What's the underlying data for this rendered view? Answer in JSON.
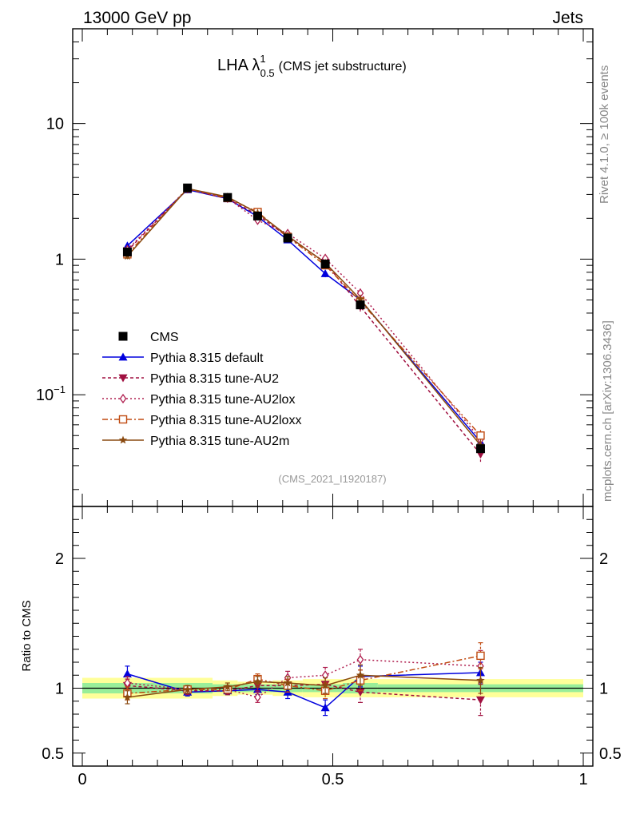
{
  "header": {
    "left": "13000 GeV pp",
    "right": "Jets"
  },
  "side": {
    "rivet": "Rivet 4.1.0, ≥ 100k events",
    "mcplots": "mcplots.cern.ch [arXiv:1306.3436]"
  },
  "chart_data": {
    "type": "line",
    "title": {
      "main": "LHA λ",
      "sup": "1",
      "sub": "0.5",
      "suffix": "(CMS jet substructure)"
    },
    "analysis_id": "(CMS_2021_I1920187)",
    "ratio_ylabel": "Ratio to CMS",
    "yscale": "log",
    "xlim": [
      0,
      1
    ],
    "ylim_main": [
      0.015,
      50
    ],
    "ylim_ratio": [
      0.4,
      2.4
    ],
    "main_ticks": [
      {
        "value": 10,
        "label": "10"
      },
      {
        "value": 1,
        "label": "1"
      },
      {
        "value": 0.1,
        "label": "10",
        "sup": "−1"
      }
    ],
    "ratio_ticks": [
      {
        "value": 2,
        "label": "2"
      },
      {
        "value": 1,
        "label": "1"
      },
      {
        "value": 0.5,
        "label": "0.5"
      }
    ],
    "x_ticks": [
      {
        "value": 0,
        "label": "0"
      },
      {
        "value": 0.5,
        "label": "0.5"
      },
      {
        "value": 1,
        "label": "1"
      }
    ],
    "x": [
      0.09,
      0.21,
      0.29,
      0.35,
      0.41,
      0.485,
      0.555,
      0.795
    ],
    "data": {
      "name": "CMS",
      "values": [
        1.13,
        3.35,
        2.85,
        2.08,
        1.43,
        0.92,
        0.46,
        0.04
      ],
      "band_inner": [
        0.04,
        0.03,
        0.03,
        0.03,
        0.03,
        0.04,
        0.03,
        0.04
      ],
      "band_outer": [
        0.08,
        0.06,
        0.05,
        0.06,
        0.07,
        0.07,
        0.07,
        0.1
      ]
    },
    "series": [
      {
        "name": "Pythia 8.315 default",
        "color": "#0000dd",
        "dash": "",
        "marker": "triangle-up",
        "ratio": [
          1.11,
          0.97,
          0.98,
          0.99,
          0.97,
          0.85,
          1.09,
          1.12
        ],
        "err": [
          0.06,
          0.03,
          0.03,
          0.04,
          0.05,
          0.06,
          0.08,
          0.08
        ]
      },
      {
        "name": "Pythia 8.315 tune-AU2",
        "color": "#a01040",
        "dash": "4,3",
        "marker": "triangle-down",
        "ratio": [
          1.02,
          0.98,
          0.98,
          1.02,
          1.02,
          1.03,
          0.97,
          0.91
        ],
        "err": [
          0.05,
          0.03,
          0.03,
          0.04,
          0.05,
          0.06,
          0.08,
          0.12
        ]
      },
      {
        "name": "Pythia 8.315 tune-AU2lox",
        "color": "#b02050",
        "dash": "2,3",
        "marker": "diamond",
        "ratio": [
          1.04,
          0.99,
          0.99,
          0.93,
          1.08,
          1.1,
          1.22,
          1.17
        ],
        "err": [
          0.05,
          0.03,
          0.03,
          0.04,
          0.05,
          0.06,
          0.08,
          0.12
        ]
      },
      {
        "name": "Pythia 8.315 tune-AU2loxx",
        "color": "#c04a10",
        "dash": "7,3,2,3",
        "marker": "square-open",
        "ratio": [
          0.96,
          0.99,
          0.99,
          1.07,
          1.02,
          0.98,
          1.06,
          1.25
        ],
        "err": [
          0.05,
          0.03,
          0.03,
          0.04,
          0.05,
          0.06,
          0.08,
          0.1
        ]
      },
      {
        "name": "Pythia 8.315 tune-AU2m",
        "color": "#8a4a10",
        "dash": "",
        "marker": "star",
        "ratio": [
          0.93,
          0.99,
          1.01,
          1.05,
          1.04,
          1.02,
          1.1,
          1.06
        ],
        "err": [
          0.05,
          0.03,
          0.03,
          0.04,
          0.05,
          0.06,
          0.08,
          0.1
        ]
      }
    ]
  }
}
